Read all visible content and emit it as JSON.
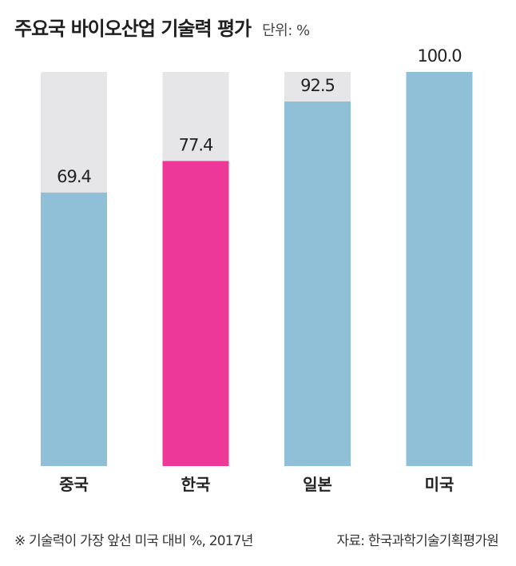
{
  "header": {
    "title": "주요국 바이오산업 기술력 평가",
    "unit": "단위: %"
  },
  "footer": {
    "note": "※ 기술력이 가장 앞선 미국 대비 %, 2017년",
    "source": "자료: 한국과학기술기획평가원"
  },
  "colors": {
    "bar_default": "#90c0d7",
    "bar_highlight": "#ee3897",
    "bar_track": "#e6e6e8"
  },
  "chart_data": {
    "type": "bar",
    "title": "주요국 바이오산업 기술력 평가",
    "unit": "단위: %",
    "categories": [
      "중국",
      "한국",
      "일본",
      "미국"
    ],
    "values": [
      69.4,
      77.4,
      92.5,
      100.0
    ],
    "value_labels": [
      "69.4",
      "77.4",
      "92.5",
      "100.0"
    ],
    "highlight": "한국",
    "ylim": [
      0,
      100
    ],
    "grid": false,
    "legend": "none"
  }
}
